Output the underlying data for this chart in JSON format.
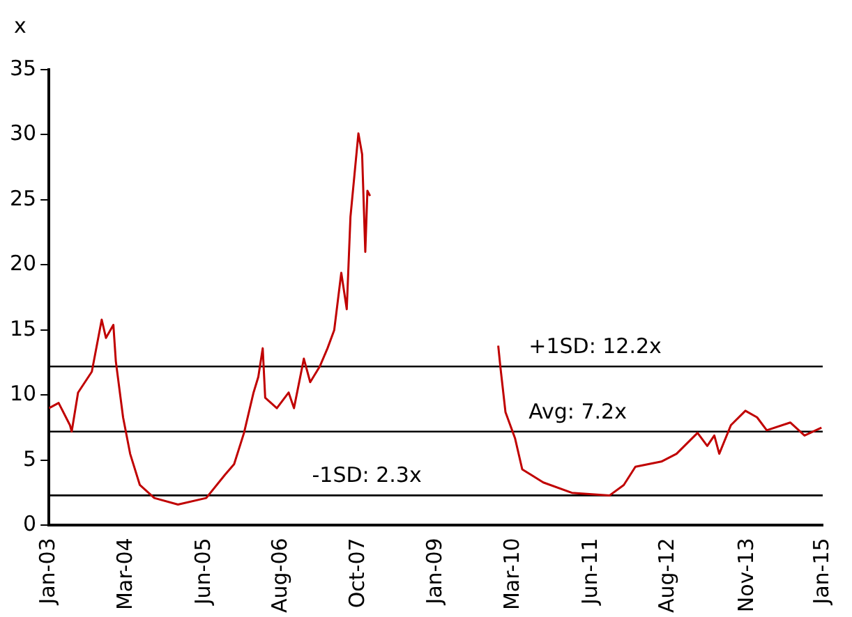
{
  "chart_data": {
    "type": "line",
    "ylabel": "x",
    "x": [
      "2003-01-01",
      "2003-02-25",
      "2003-04-30",
      "2003-05-10",
      "2003-06-15",
      "2003-09-01",
      "2003-10-27",
      "2003-11-20",
      "2004-01-01",
      "2004-01-15",
      "2004-02-25",
      "2004-04-05",
      "2004-05-30",
      "2004-08-20",
      "2005-01-01",
      "2005-06-10",
      "2005-09-25",
      "2005-11-15",
      "2006-01-10",
      "2006-03-05",
      "2006-04-01",
      "2006-04-26",
      "2006-05-10",
      "2006-07-15",
      "2006-09-20",
      "2006-10-20",
      "2006-12-15",
      "2007-01-20",
      "2007-03-15",
      "2007-04-28",
      "2007-06-05",
      "2007-07-15",
      "2007-08-15",
      "2007-09-05",
      "2007-10-20",
      "2007-11-10",
      "2007-11-28",
      "2007-12-10",
      "2007-12-25",
      "2009-01-01",
      "2009-12-20",
      "2010-01-01",
      "2010-01-30",
      "2010-03-25",
      "2010-05-05",
      "2010-09-01",
      "2011-02-10",
      "2011-09-12",
      "2011-12-01",
      "2012-02-05",
      "2012-07-01",
      "2012-09-25",
      "2013-01-22",
      "2013-03-18",
      "2013-04-27",
      "2013-05-25",
      "2013-07-30",
      "2013-10-20",
      "2013-12-25",
      "2014-02-18",
      "2014-07-01",
      "2014-09-20",
      "2014-12-25"
    ],
    "series": [
      {
        "color": "#c00000",
        "values": [
          9.0,
          9.4,
          7.7,
          7.2,
          10.2,
          11.8,
          15.8,
          14.4,
          15.4,
          12.6,
          8.3,
          5.5,
          3.1,
          2.1,
          1.6,
          2.1,
          3.9,
          4.7,
          7.1,
          10.2,
          11.4,
          13.6,
          9.8,
          9.0,
          10.2,
          9.0,
          12.8,
          11.0,
          12.2,
          13.6,
          15.0,
          19.4,
          16.6,
          23.7,
          30.1,
          28.5,
          21.0,
          25.7,
          25.3,
          null,
          13.8,
          12.2,
          8.7,
          6.7,
          4.3,
          3.3,
          2.5,
          2.3,
          3.1,
          4.5,
          4.9,
          5.5,
          7.1,
          6.1,
          6.9,
          5.5,
          7.7,
          8.8,
          8.3,
          7.3,
          7.9,
          6.9,
          7.5
        ]
      }
    ],
    "xlim": [
      "2003-01-01",
      "2015-01-01"
    ],
    "xticks": [
      {
        "value": "2003-01-01",
        "label": "Jan-03"
      },
      {
        "value": "2004-03-14",
        "label": "Mar-04"
      },
      {
        "value": "2005-06-01",
        "label": "Jun-05"
      },
      {
        "value": "2006-08-08",
        "label": "Aug-06"
      },
      {
        "value": "2007-10-20",
        "label": "Oct-07"
      },
      {
        "value": "2009-01-01",
        "label": "Jan-09"
      },
      {
        "value": "2010-03-14",
        "label": "Mar-10"
      },
      {
        "value": "2011-06-01",
        "label": "Jun-11"
      },
      {
        "value": "2012-08-08",
        "label": "Aug-12"
      },
      {
        "value": "2013-11-01",
        "label": "Nov-13"
      },
      {
        "value": "2015-01-01",
        "label": "Jan-15"
      }
    ],
    "ylim": [
      0,
      35
    ],
    "yticks": [
      0,
      5,
      10,
      15,
      20,
      25,
      30,
      35
    ],
    "ref_lines": [
      {
        "axis": "y",
        "value": 12.2,
        "label": "+1SD: 12.2x",
        "color": "#000000"
      },
      {
        "axis": "y",
        "value": 7.2,
        "label": "Avg: 7.2x",
        "color": "#000000"
      },
      {
        "axis": "y",
        "value": 2.3,
        "label": "-1SD: 2.3x",
        "color": "#000000"
      }
    ],
    "grid": false,
    "legend": false,
    "marker": "none",
    "line_style": "solid"
  }
}
